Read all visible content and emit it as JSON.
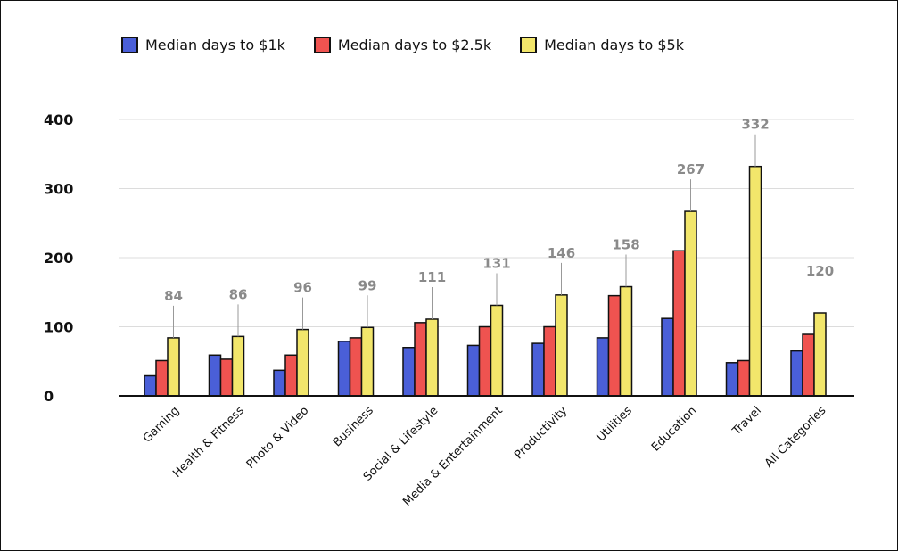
{
  "chart_data": {
    "type": "bar",
    "categories": [
      "Gaming",
      "Health & Fitness",
      "Photo & Video",
      "Business",
      "Social & Lifestyle",
      "Media & Entertainment",
      "Productivity",
      "Utilities",
      "Education",
      "Travel",
      "All Categories"
    ],
    "series": [
      {
        "name": "Median days to $1k",
        "color": "#4a5fd8",
        "values": [
          29,
          59,
          37,
          79,
          70,
          73,
          76,
          84,
          112,
          48,
          65
        ]
      },
      {
        "name": "Median days to $2.5k",
        "color": "#ef5350",
        "values": [
          51,
          53,
          59,
          84,
          106,
          100,
          100,
          145,
          210,
          51,
          89
        ]
      },
      {
        "name": "Median days to $5k",
        "color": "#f2e66b",
        "values": [
          84,
          86,
          96,
          99,
          111,
          131,
          146,
          158,
          267,
          332,
          120
        ]
      }
    ],
    "data_labels": [
      "84",
      "86",
      "96",
      "99",
      "111",
      "131",
      "146",
      "158",
      "267",
      "332",
      "120"
    ],
    "yticks": [
      "0",
      "100",
      "200",
      "300",
      "400"
    ],
    "ylim": [
      0,
      400
    ],
    "grid": true,
    "legend_position": "top-left"
  }
}
